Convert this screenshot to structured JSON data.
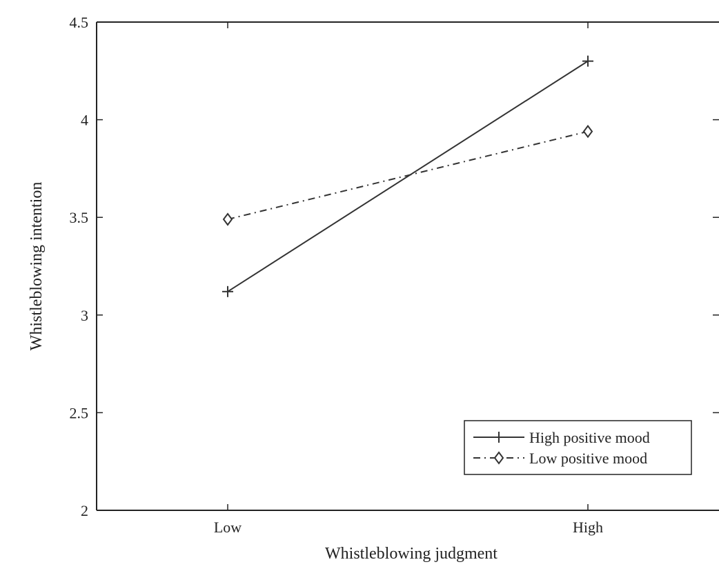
{
  "chart_data": {
    "type": "line",
    "title": "",
    "xlabel": "Whistleblowing judgment",
    "ylabel": "Whistleblowing intention",
    "categories": [
      "Low",
      "High"
    ],
    "ylim": [
      2,
      4.5
    ],
    "yticks": [
      2,
      2.5,
      3,
      3.5,
      4,
      4.5
    ],
    "ytick_labels": [
      "2",
      "2.5",
      "3",
      "3.5",
      "4",
      "4.5"
    ],
    "grid": false,
    "legend_position": "bottom-right",
    "series": [
      {
        "name": "High positive mood",
        "values": [
          3.12,
          4.3
        ],
        "line_style": "solid",
        "marker": "plus",
        "color": "#333333"
      },
      {
        "name": "Low positive mood",
        "values": [
          3.49,
          3.94
        ],
        "line_style": "dash-dot",
        "marker": "diamond",
        "color": "#333333"
      }
    ]
  }
}
